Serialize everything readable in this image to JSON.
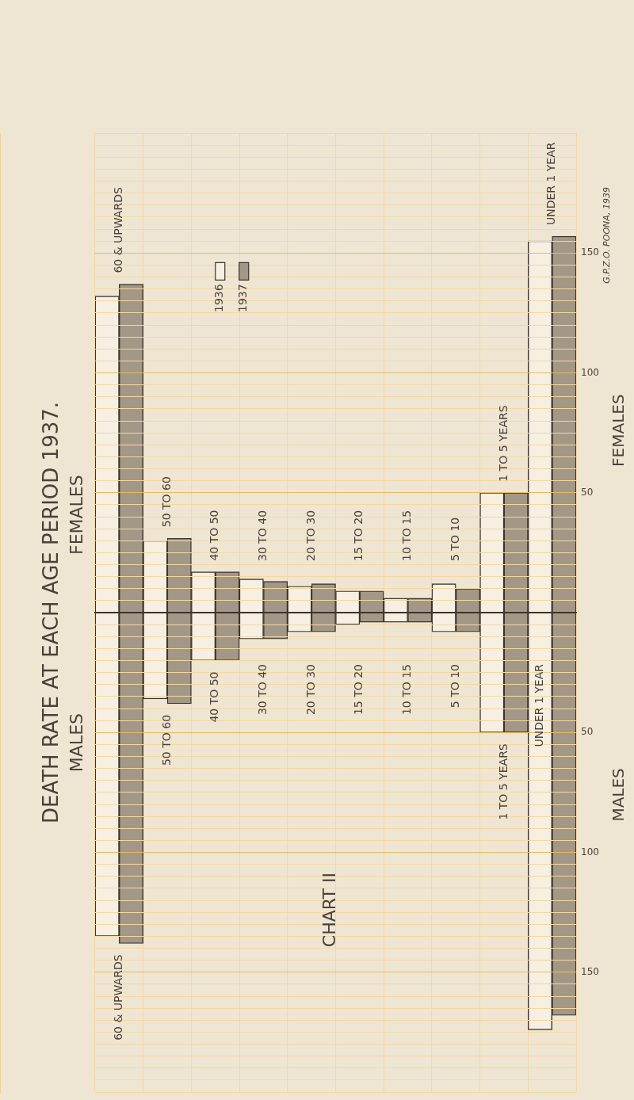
{
  "chart_data": [
    {
      "type": "bar",
      "title": "DEATH RATE AT EACH AGE PERIOD 1937.",
      "subtitle": "FEMALES",
      "ylabel": "FEMALES",
      "categories": [
        "60 & UPWARDS",
        "50 TO 60",
        "40 TO 50",
        "30 TO 40",
        "20 TO 30",
        "15 TO 20",
        "10 TO 15",
        "5 TO 10",
        "1 TO 5 YEARS",
        "UNDER 1 YEAR"
      ],
      "series": [
        {
          "name": "1936",
          "color": "#f6efe2",
          "values": [
            132,
            30,
            17,
            14,
            11,
            9,
            6,
            12,
            50,
            155
          ]
        },
        {
          "name": "1937",
          "color": "#a39887",
          "values": [
            137,
            31,
            17,
            13,
            12,
            9,
            6,
            10,
            50,
            157
          ]
        }
      ],
      "ylim": [
        0,
        200
      ],
      "yticks": [
        {
          "value": 5,
          "label": null
        },
        {
          "value": 10,
          "label": null
        },
        {
          "value": 15,
          "label": null
        },
        {
          "value": 20,
          "label": null
        },
        {
          "value": 25,
          "label": null
        },
        {
          "value": 30,
          "label": null
        },
        {
          "value": 35,
          "label": null
        },
        {
          "value": 40,
          "label": null
        },
        {
          "value": 45,
          "label": null
        },
        50,
        {
          "value": 55,
          "label": null
        },
        {
          "value": 60,
          "label": null
        },
        {
          "value": 65,
          "label": null
        },
        {
          "value": 70,
          "label": null
        },
        {
          "value": 75,
          "label": null
        },
        {
          "value": 80,
          "label": null
        },
        {
          "value": 85,
          "label": null
        },
        {
          "value": 90,
          "label": null
        },
        {
          "value": 95,
          "label": null
        },
        100,
        {
          "value": 105,
          "label": null
        },
        {
          "value": 110,
          "label": null
        },
        {
          "value": 115,
          "label": null
        },
        {
          "value": 120,
          "label": null
        },
        {
          "value": 125,
          "label": null
        },
        {
          "value": 130,
          "label": null
        },
        {
          "value": 135,
          "label": null
        },
        {
          "value": 140,
          "label": null
        },
        {
          "value": 145,
          "label": null
        },
        150,
        {
          "value": 155,
          "label": null
        },
        {
          "value": 160,
          "label": null
        },
        {
          "value": 165,
          "label": null
        },
        {
          "value": 170,
          "label": null
        },
        {
          "value": 175,
          "label": null
        },
        {
          "value": 180,
          "label": null
        },
        {
          "value": 185,
          "label": null
        },
        {
          "value": 190,
          "label": null
        },
        {
          "value": 195,
          "label": null
        },
        {
          "value": 200,
          "label": null
        }
      ],
      "grid": true,
      "legend": "top left",
      "annotations": [
        "G.P.Z.O. POONA, 1939"
      ]
    },
    {
      "type": "bar",
      "subtitle": "MALES",
      "ylabel": "MALES",
      "categories": [
        "60 & UPWARDS",
        "50 TO 60",
        "40 TO 50",
        "30 TO 40",
        "20 TO 30",
        "15 TO 20",
        "10 TO 15",
        "5 TO 10",
        "1 TO 5 YEARS",
        "UNDER 1 YEAR"
      ],
      "series": [
        {
          "color": "#f6efe2",
          "values": [
            135,
            36,
            20,
            11,
            8,
            5,
            4,
            8,
            50,
            174
          ]
        },
        {
          "color": "#a39887",
          "values": [
            138,
            38,
            20,
            11,
            8,
            4,
            4,
            8,
            50,
            168
          ]
        }
      ],
      "ylim": [
        200,
        0
      ],
      "yticks": [
        {
          "value": 5,
          "label": null
        },
        {
          "value": 10,
          "label": null
        },
        {
          "value": 15,
          "label": null
        },
        {
          "value": 20,
          "label": null
        },
        {
          "value": 25,
          "label": null
        },
        {
          "value": 30,
          "label": null
        },
        {
          "value": 35,
          "label": null
        },
        {
          "value": 40,
          "label": null
        },
        {
          "value": 45,
          "label": null
        },
        50,
        {
          "value": 55,
          "label": null
        },
        {
          "value": 60,
          "label": null
        },
        {
          "value": 65,
          "label": null
        },
        {
          "value": 70,
          "label": null
        },
        {
          "value": 75,
          "label": null
        },
        {
          "value": 80,
          "label": null
        },
        {
          "value": 85,
          "label": null
        },
        {
          "value": 90,
          "label": null
        },
        {
          "value": 95,
          "label": null
        },
        100,
        {
          "value": 105,
          "label": null
        },
        {
          "value": 110,
          "label": null
        },
        {
          "value": 115,
          "label": null
        },
        {
          "value": 120,
          "label": null
        },
        {
          "value": 125,
          "label": null
        },
        {
          "value": 130,
          "label": null
        },
        {
          "value": 135,
          "label": null
        },
        {
          "value": 140,
          "label": null
        },
        {
          "value": 145,
          "label": null
        },
        150,
        {
          "value": 155,
          "label": null
        },
        {
          "value": 160,
          "label": null
        },
        {
          "value": 165,
          "label": null
        },
        {
          "value": 170,
          "label": null
        },
        {
          "value": 175,
          "label": null
        },
        {
          "value": 180,
          "label": null
        },
        {
          "value": 185,
          "label": null
        },
        {
          "value": 190,
          "label": null
        },
        {
          "value": 195,
          "label": null
        },
        {
          "value": 200,
          "label": null
        }
      ],
      "grid": true,
      "annotations": [
        "CHART II"
      ]
    }
  ]
}
